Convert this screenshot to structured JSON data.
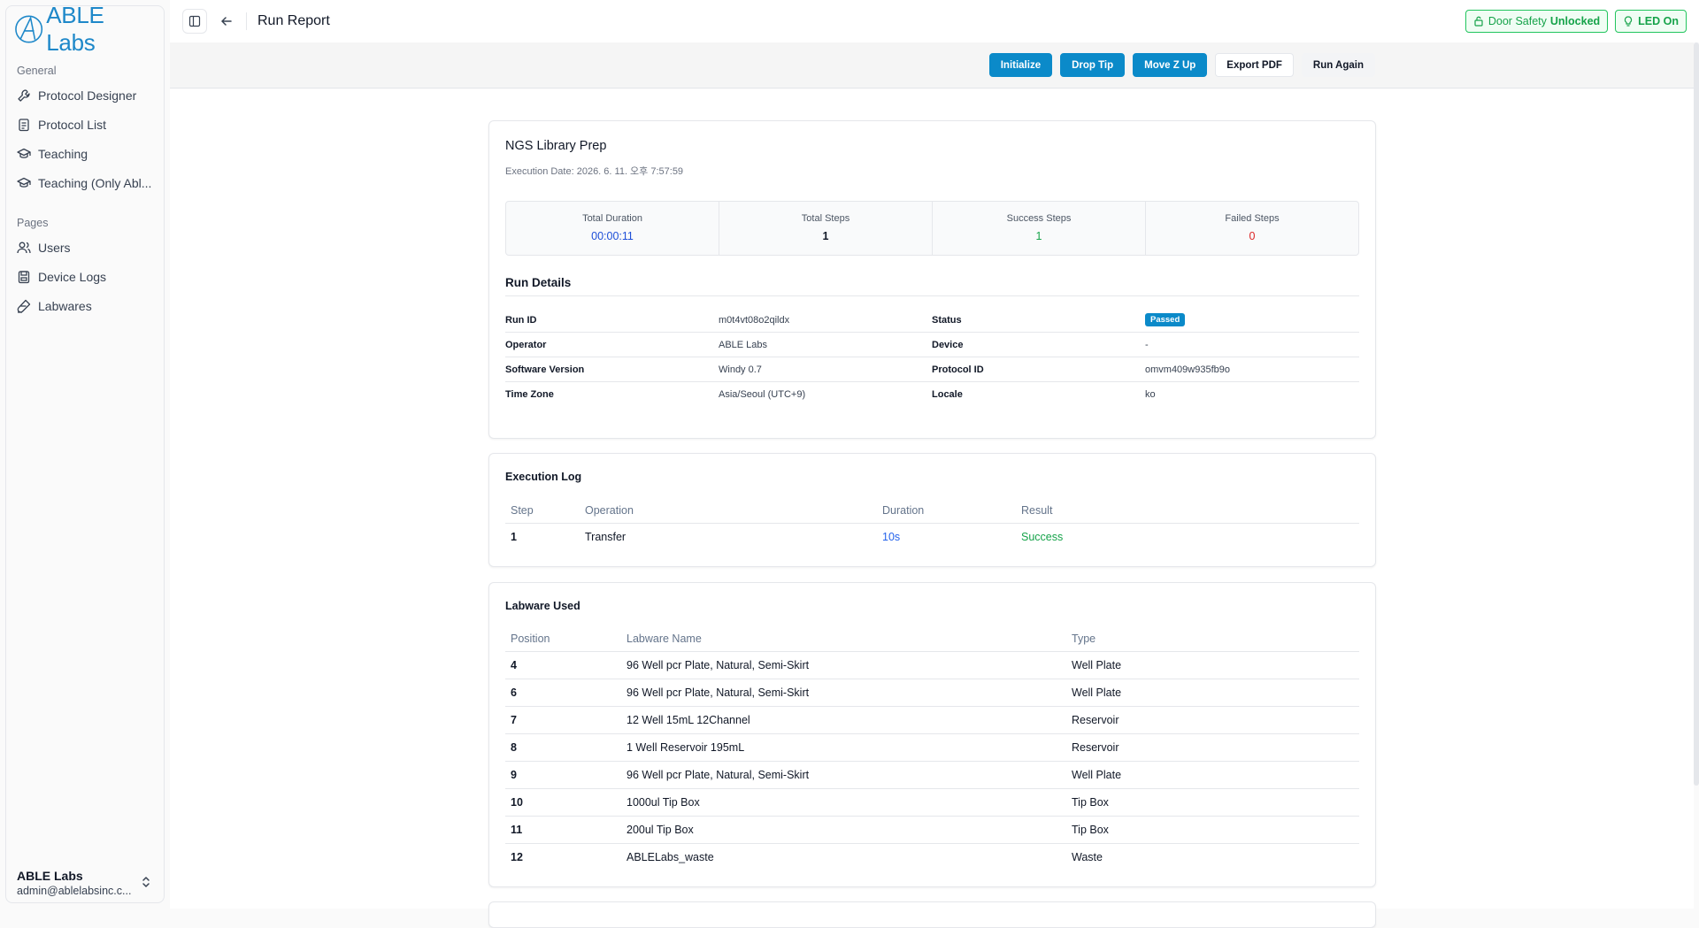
{
  "sidebar": {
    "logo_text": "ABLE Labs",
    "general_label": "General",
    "general_items": [
      {
        "label": "Protocol Designer",
        "icon": "wrench-icon"
      },
      {
        "label": "Protocol List",
        "icon": "clipboard-list-icon"
      },
      {
        "label": "Teaching",
        "icon": "graduation-cap-icon"
      },
      {
        "label": "Teaching (Only Abl...",
        "icon": "graduation-cap-icon"
      }
    ],
    "pages_label": "Pages",
    "pages_items": [
      {
        "label": "Users",
        "icon": "users-icon"
      },
      {
        "label": "Device Logs",
        "icon": "save-log-icon"
      },
      {
        "label": "Labwares",
        "icon": "beaker-icon"
      }
    ],
    "user": {
      "name": "ABLE Labs",
      "email": "admin@ablelabsinc.c..."
    }
  },
  "header": {
    "title": "Run Report",
    "door_label": "Door Safety",
    "door_state": "Unlocked",
    "led_label": "LED On"
  },
  "toolbar": {
    "initialize": "Initialize",
    "drop_tip": "Drop Tip",
    "move_z_up": "Move Z Up",
    "export_pdf": "Export PDF",
    "run_again": "Run Again"
  },
  "report": {
    "title": "NGS Library Prep",
    "execution_date": "Execution Date: 2026. 6. 11. 오후 7:57:59",
    "stats": {
      "total_duration_label": "Total Duration",
      "total_duration": "00:00:11",
      "total_steps_label": "Total Steps",
      "total_steps": "1",
      "success_steps_label": "Success Steps",
      "success_steps": "1",
      "failed_steps_label": "Failed Steps",
      "failed_steps": "0"
    },
    "run_details_title": "Run Details",
    "details": {
      "run_id_label": "Run ID",
      "run_id": "m0t4vt08o2qildx",
      "status_label": "Status",
      "status": "Passed",
      "operator_label": "Operator",
      "operator": "ABLE Labs",
      "device_label": "Device",
      "device": "-",
      "software_label": "Software Version",
      "software": "Windy 0.7",
      "protocol_id_label": "Protocol ID",
      "protocol_id": "omvm409w935fb9o",
      "timezone_label": "Time Zone",
      "timezone": "Asia/Seoul (UTC+9)",
      "locale_label": "Locale",
      "locale": "ko"
    }
  },
  "execution_log": {
    "title": "Execution Log",
    "headers": [
      "Step",
      "Operation",
      "Duration",
      "Result"
    ],
    "rows": [
      {
        "step": "1",
        "operation": "Transfer",
        "duration": "10s",
        "result": "Success"
      }
    ]
  },
  "labware": {
    "title": "Labware Used",
    "headers": [
      "Position",
      "Labware Name",
      "Type"
    ],
    "rows": [
      {
        "position": "4",
        "name": "96 Well pcr Plate, Natural, Semi-Skirt",
        "type": "Well Plate"
      },
      {
        "position": "6",
        "name": "96 Well pcr Plate, Natural, Semi-Skirt",
        "type": "Well Plate"
      },
      {
        "position": "7",
        "name": "12 Well 15mL 12Channel",
        "type": "Reservoir"
      },
      {
        "position": "8",
        "name": "1 Well Reservoir 195mL",
        "type": "Reservoir"
      },
      {
        "position": "9",
        "name": "96 Well pcr Plate, Natural, Semi-Skirt",
        "type": "Well Plate"
      },
      {
        "position": "10",
        "name": "1000ul Tip Box",
        "type": "Tip Box"
      },
      {
        "position": "11",
        "name": "200ul Tip Box",
        "type": "Tip Box"
      },
      {
        "position": "12",
        "name": "ABLELabs_waste",
        "type": "Waste"
      }
    ]
  }
}
